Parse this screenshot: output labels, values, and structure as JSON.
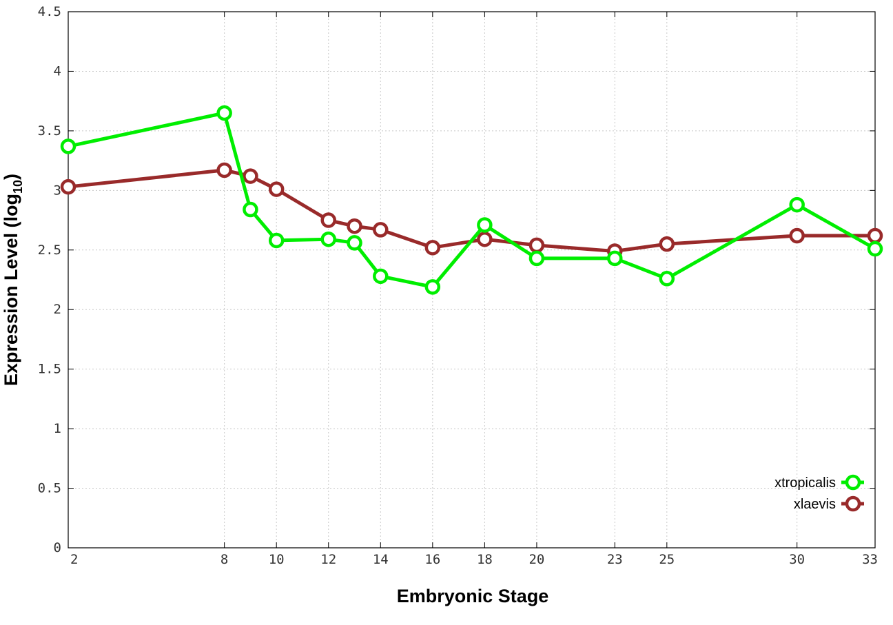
{
  "chart_data": {
    "type": "line",
    "xlabel": "Embryonic Stage",
    "ylabel_main": "Expression Level (log",
    "ylabel_sub": "10",
    "ylabel_close": ")",
    "ylim": [
      0,
      4.5
    ],
    "xlim": [
      2,
      33
    ],
    "y_ticks": [
      0,
      0.5,
      1,
      1.5,
      2,
      2.5,
      3,
      3.5,
      4,
      4.5
    ],
    "y_tick_labels": [
      "0",
      "0.5",
      "1",
      "1.5",
      "2",
      "2.5",
      "3",
      "3.5",
      "4",
      "4.5"
    ],
    "x_ticks": [
      2,
      8,
      10,
      12,
      14,
      16,
      18,
      20,
      23,
      25,
      30,
      33
    ],
    "x_tick_labels": [
      "2",
      "8",
      "10",
      "12",
      "14",
      "16",
      "18",
      "20",
      "23",
      "25",
      "30",
      "33"
    ],
    "grid": true,
    "legend_position": "bottom-right",
    "series": [
      {
        "name": "xtropicalis",
        "color": "#00ee00",
        "x": [
          2,
          8,
          9,
          10,
          12,
          13,
          14,
          16,
          18,
          20,
          23,
          25,
          30,
          33
        ],
        "values": [
          3.37,
          3.65,
          2.84,
          2.58,
          2.59,
          2.56,
          2.28,
          2.19,
          2.71,
          2.43,
          2.43,
          2.26,
          2.88,
          2.51
        ]
      },
      {
        "name": "xlaevis",
        "color": "#992a2a",
        "x": [
          2,
          8,
          9,
          10,
          12,
          13,
          14,
          16,
          18,
          20,
          23,
          25,
          30,
          33
        ],
        "values": [
          3.03,
          3.17,
          3.12,
          3.01,
          2.75,
          2.7,
          2.67,
          2.52,
          2.59,
          2.54,
          2.49,
          2.55,
          2.62,
          2.62
        ]
      }
    ]
  }
}
